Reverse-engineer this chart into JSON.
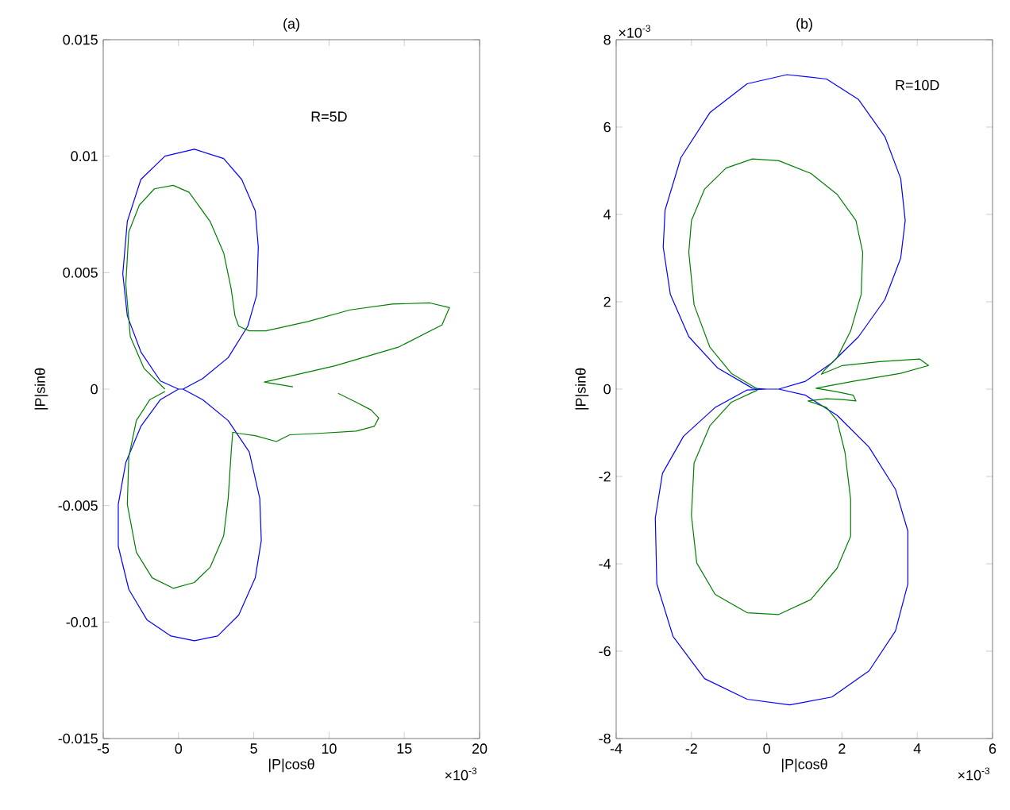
{
  "chart_data": [
    {
      "type": "line",
      "title": "(a)",
      "xlabel": "|P|cosθ",
      "ylabel": "|P|sinθ",
      "annotations": [
        "R=5D",
        "×10$^{-3}$"
      ],
      "xlim": [
        -5,
        20
      ],
      "xticks": [
        -5,
        0,
        5,
        10,
        15,
        20
      ],
      "ylim": [
        -0.015,
        0.015
      ],
      "yticks": [
        -0.015,
        -0.01,
        -0.005,
        0,
        0.005,
        0.01,
        0.015
      ],
      "series": [
        {
          "color": "#0000ff",
          "x": [
            0.3,
            1.6,
            3.3,
            4.6,
            5.2,
            5.3,
            5.1,
            4.2,
            3.0,
            1.05,
            -0.9,
            -2.5,
            -3.4,
            -3.7,
            -3.4,
            -2.5,
            -1.2,
            0,
            0.3,
            1.6,
            3.3,
            4.7,
            5.4,
            5.5,
            5.1,
            4.0,
            2.6,
            1.05,
            -0.5,
            -2.1,
            -3.3,
            -4.0,
            -4.0,
            -3.5,
            -2.5,
            -1.2,
            0
          ],
          "values": [
            0,
            0.00045,
            0.00135,
            0.0027,
            0.00405,
            0.0061,
            0.00765,
            0.009,
            0.0099,
            0.0103,
            0.01,
            0.009,
            0.0072,
            0.00495,
            0.00315,
            0.0016,
            0.00035,
            0,
            0,
            -0.00045,
            -0.00135,
            -0.0027,
            -0.0047,
            -0.0065,
            -0.0081,
            -0.0097,
            -0.0106,
            -0.0108,
            -0.0106,
            -0.0099,
            -0.0086,
            -0.00675,
            -0.00495,
            -0.00315,
            -0.0016,
            -0.00045,
            0
          ]
        },
        {
          "color": "#008000",
          "x": [
            -0.9,
            -2.3,
            -3.2,
            -3.5,
            -3.3,
            -2.6,
            -1.6,
            -0.35,
            0.7,
            2.1,
            3.0,
            3.5,
            3.75,
            4.0,
            4.7,
            5.8,
            8.6,
            11.4,
            14.2,
            16.7,
            18.0,
            17.5,
            14.6,
            10.4,
            5.7,
            7.6,
            null,
            10.6,
            11.8,
            12.8,
            13.3,
            13.0,
            11.8,
            9.3,
            7.4,
            6.5,
            5.1,
            4.0,
            3.6,
            3.5,
            3.3,
            3.0,
            2.1,
            1.05,
            -0.35,
            -1.75,
            -2.8,
            -3.4,
            -3.3,
            -2.8,
            -1.9,
            -0.9
          ],
          "values": [
            0,
            0.0009,
            0.00225,
            0.0045,
            0.00675,
            0.0079,
            0.0086,
            0.00875,
            0.00845,
            0.0072,
            0.00585,
            0.0043,
            0.00315,
            0.0027,
            0.0025,
            0.0025,
            0.0029,
            0.0034,
            0.00365,
            0.0037,
            0.0035,
            0.00275,
            0.0018,
            0.001,
            0.0003,
            0.0001,
            null,
            -0.00018,
            -0.00056,
            -0.0009,
            -0.00124,
            -0.0016,
            -0.0018,
            -0.0019,
            -0.00196,
            -0.00225,
            -0.002,
            -0.0019,
            -0.00185,
            -0.0027,
            -0.0047,
            -0.0063,
            -0.00765,
            -0.0083,
            -0.00855,
            -0.0081,
            -0.007,
            -0.00495,
            -0.0029,
            -0.00135,
            -0.00045,
            -0.0001
          ]
        }
      ]
    },
    {
      "type": "line",
      "title": "(b)",
      "xlabel": "|P|cosθ",
      "ylabel": "|P|sinθ",
      "annotations": [
        "R=10D",
        "×10$^{-3}$",
        "×10$^{-3}$"
      ],
      "xlim": [
        -4,
        6
      ],
      "xticks": [
        -4,
        -2,
        0,
        2,
        4,
        6
      ],
      "ylim": [
        -8,
        8
      ],
      "yticks": [
        -8,
        -6,
        -4,
        -2,
        0,
        2,
        4,
        6,
        8
      ],
      "series": [
        {
          "color": "#0000ff",
          "x": [
            0.32,
            1.03,
            1.73,
            2.44,
            3.14,
            3.56,
            3.68,
            3.56,
            3.14,
            2.44,
            1.59,
            0.54,
            -0.52,
            -1.51,
            -2.28,
            -2.7,
            -2.75,
            -2.56,
            -2.07,
            -1.3,
            -0.38,
            0,
            0.32,
            1.03,
            1.87,
            2.72,
            3.42,
            3.75,
            3.75,
            3.42,
            2.72,
            1.73,
            0.61,
            -0.52,
            -1.65,
            -2.49,
            -2.92,
            -2.96,
            -2.77,
            -2.21,
            -1.37,
            -0.52,
            0
          ],
          "values": [
            0,
            0.18,
            0.6,
            1.2,
            2.05,
            3.0,
            3.86,
            4.82,
            5.78,
            6.63,
            7.1,
            7.2,
            6.99,
            6.33,
            5.3,
            4.1,
            3.25,
            2.17,
            1.2,
            0.48,
            0.02,
            0,
            0,
            -0.14,
            -0.6,
            -1.33,
            -2.29,
            -3.25,
            -4.46,
            -5.54,
            -6.45,
            -7.05,
            -7.23,
            -7.1,
            -6.63,
            -5.66,
            -4.46,
            -2.95,
            -1.93,
            -1.08,
            -0.42,
            -0.02,
            0
          ]
        },
        {
          "color": "#008000",
          "x": [
            -0.24,
            -0.94,
            -1.51,
            -1.93,
            -2.07,
            -2.0,
            -1.65,
            -1.08,
            -0.38,
            0.32,
            1.17,
            1.87,
            2.37,
            2.55,
            2.51,
            2.23,
            1.87,
            1.52,
            1.45,
            2.01,
            3.0,
            4.06,
            4.3,
            3.56,
            2.3,
            1.31,
            1.87,
            2.3,
            2.37,
            2.01,
            1.59,
            1.1,
            1.59,
            1.87,
            2.08,
            2.23,
            2.23,
            1.87,
            1.17,
            0.32,
            -0.52,
            -1.37,
            -1.86,
            -2.0,
            -1.93,
            -1.51,
            -0.94,
            -0.24
          ],
          "values": [
            0,
            0.36,
            0.96,
            1.93,
            3.13,
            3.86,
            4.58,
            5.06,
            5.27,
            5.23,
            4.94,
            4.46,
            3.86,
            3.13,
            2.17,
            1.33,
            0.72,
            0.42,
            0.34,
            0.54,
            0.63,
            0.69,
            0.54,
            0.36,
            0.18,
            0.02,
            -0.06,
            -0.14,
            -0.27,
            -0.24,
            -0.22,
            -0.27,
            -0.42,
            -0.72,
            -1.45,
            -2.53,
            -3.37,
            -4.1,
            -4.82,
            -5.16,
            -5.12,
            -4.7,
            -3.98,
            -2.89,
            -1.69,
            -0.84,
            -0.3,
            -0.02
          ]
        }
      ]
    }
  ]
}
